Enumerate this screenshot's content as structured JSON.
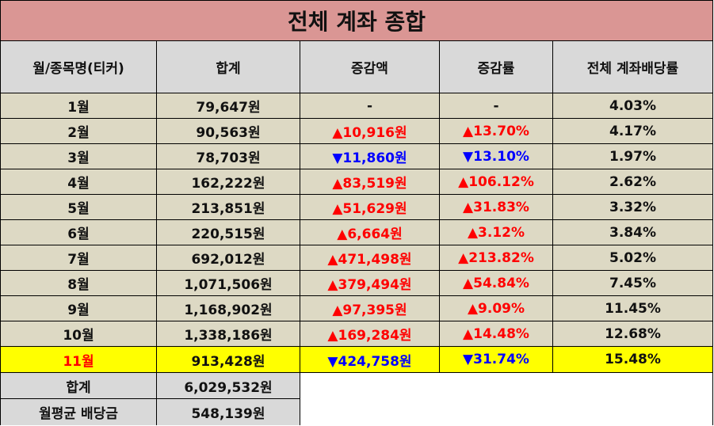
{
  "chart_data": {
    "type": "table",
    "title": "전체 계좌 종합",
    "columns": [
      "월/종목명(티커)",
      "합계",
      "증감액",
      "증감률",
      "전체 계좌배당률"
    ],
    "rows": [
      {
        "month": "1월",
        "total": "79,647원",
        "change_amount": "-",
        "change_rate": "-",
        "direction": "none",
        "dividend_rate": "4.03%"
      },
      {
        "month": "2월",
        "total": "90,563원",
        "change_amount": "▲10,916원",
        "change_rate": "▲13.70%",
        "direction": "up",
        "dividend_rate": "4.17%"
      },
      {
        "month": "3월",
        "total": "78,703원",
        "change_amount": "▼11,860원",
        "change_rate": "▼13.10%",
        "direction": "down",
        "dividend_rate": "1.97%"
      },
      {
        "month": "4월",
        "total": "162,222원",
        "change_amount": "▲83,519원",
        "change_rate": "▲106.12%",
        "direction": "up",
        "dividend_rate": "2.62%"
      },
      {
        "month": "5월",
        "total": "213,851원",
        "change_amount": "▲51,629원",
        "change_rate": "▲31.83%",
        "direction": "up",
        "dividend_rate": "3.32%"
      },
      {
        "month": "6월",
        "total": "220,515원",
        "change_amount": "▲6,664원",
        "change_rate": "▲3.12%",
        "direction": "up",
        "dividend_rate": "3.84%"
      },
      {
        "month": "7월",
        "total": "692,012원",
        "change_amount": "▲471,498원",
        "change_rate": "▲213.82%",
        "direction": "up",
        "dividend_rate": "5.02%"
      },
      {
        "month": "8월",
        "total": "1,071,506원",
        "change_amount": "▲379,494원",
        "change_rate": "▲54.84%",
        "direction": "up",
        "dividend_rate": "7.45%"
      },
      {
        "month": "9월",
        "total": "1,168,902원",
        "change_amount": "▲97,395원",
        "change_rate": "▲9.09%",
        "direction": "up",
        "dividend_rate": "11.45%"
      },
      {
        "month": "10월",
        "total": "1,338,186원",
        "change_amount": "▲169,284원",
        "change_rate": "▲14.48%",
        "direction": "up",
        "dividend_rate": "12.68%"
      },
      {
        "month": "11월",
        "total": "913,428원",
        "change_amount": "▼424,758원",
        "change_rate": "▼31.74%",
        "direction": "down",
        "dividend_rate": "15.48%",
        "highlight": true
      }
    ],
    "summary": [
      {
        "label": "합계",
        "value": "6,029,532원"
      },
      {
        "label": "월평균 배당금",
        "value": "548,139원"
      }
    ]
  },
  "colors": {
    "title_bg": "#da9694",
    "header_bg": "#d9d9d9",
    "row_bg": "#ddd9c4",
    "highlight_bg": "#ffff00",
    "up": "#ff0000",
    "down": "#0000ff"
  }
}
